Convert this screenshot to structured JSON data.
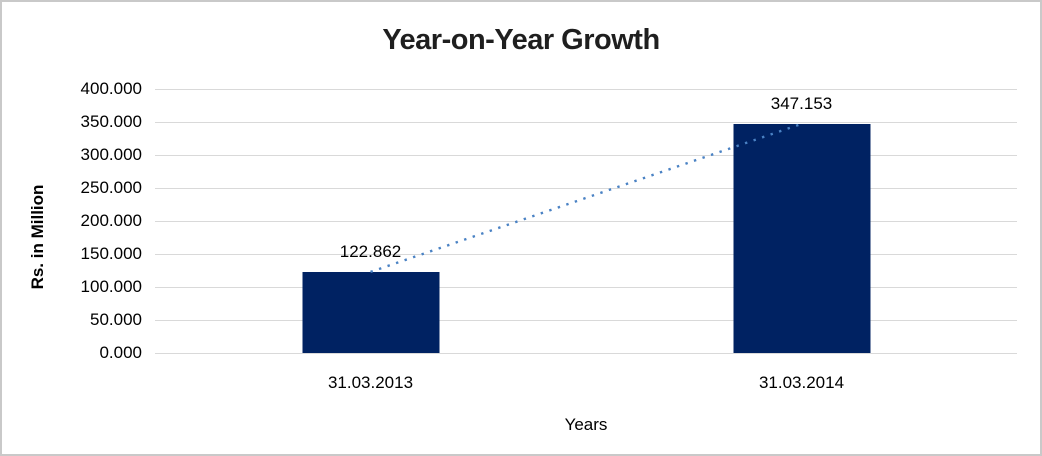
{
  "window": {
    "background_color": "#ffffff",
    "border_color": "#c9c9c9"
  },
  "chart_data": {
    "type": "bar",
    "title": "Year-on-Year Growth",
    "xlabel": "Years",
    "ylabel": "Rs. in Million",
    "categories": [
      "31.03.2013",
      "31.03.2014"
    ],
    "values": [
      122.862,
      347.153
    ],
    "point_labels": [
      "122.862",
      "347.153"
    ],
    "ylim": [
      0,
      400
    ],
    "yticks": [
      0,
      50,
      100,
      150,
      200,
      250,
      300,
      350,
      400
    ],
    "ytick_labels": [
      "0.000",
      "50.000",
      "100.000",
      "150.000",
      "200.000",
      "250.000",
      "300.000",
      "350.000",
      "400.000"
    ],
    "grid": true,
    "legend": false,
    "bar_color": "#002262",
    "gridline_color": "#d9d9d9",
    "trendline": {
      "style": "dotted",
      "color": "#4a82c4",
      "connects": "bar tops (31.03.2013 to 31.03.2014)"
    }
  }
}
